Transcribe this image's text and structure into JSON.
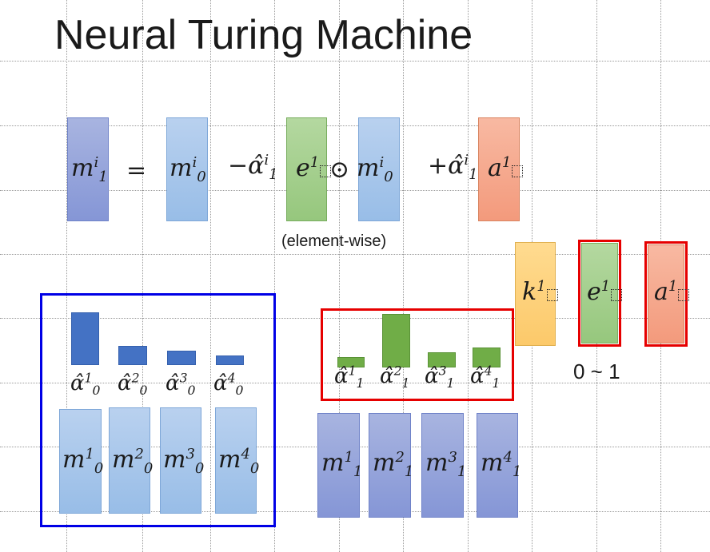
{
  "title": "Neural Turing Machine",
  "equation": {
    "lhs": {
      "base": "m",
      "sub": "1",
      "sup": "i"
    },
    "equals": "=",
    "term1": {
      "base": "m",
      "sub": "0",
      "sup": "i"
    },
    "minus": "−",
    "alpha1": {
      "base": "α̂",
      "sub": "1",
      "sup": "i"
    },
    "erase": {
      "base": "e",
      "sup": "1"
    },
    "odot": "⊙",
    "term2": {
      "base": "m",
      "sub": "0",
      "sup": "i"
    },
    "plus": "+",
    "alpha2": {
      "base": "α̂",
      "sub": "1",
      "sup": "i"
    },
    "add": {
      "base": "a",
      "sup": "1"
    },
    "note": "(element-wise)"
  },
  "controller_vectors": {
    "key": {
      "base": "k",
      "sup": "1"
    },
    "erase": {
      "base": "e",
      "sup": "1"
    },
    "add": {
      "base": "a",
      "sup": "1"
    },
    "range_note": "0 ~ 1"
  },
  "attention_prev": {
    "labels": [
      {
        "base": "α̂",
        "sub": "0",
        "sup": "1"
      },
      {
        "base": "α̂",
        "sub": "0",
        "sup": "2"
      },
      {
        "base": "α̂",
        "sub": "0",
        "sup": "3"
      },
      {
        "base": "α̂",
        "sub": "0",
        "sup": "4"
      }
    ],
    "values": [
      1.0,
      0.36,
      0.27,
      0.18
    ]
  },
  "memory_prev": [
    {
      "base": "m",
      "sub": "0",
      "sup": "1"
    },
    {
      "base": "m",
      "sub": "0",
      "sup": "2"
    },
    {
      "base": "m",
      "sub": "0",
      "sup": "3"
    },
    {
      "base": "m",
      "sub": "0",
      "sup": "4"
    }
  ],
  "attention_new": {
    "labels": [
      {
        "base": "α̂",
        "sub": "1",
        "sup": "1"
      },
      {
        "base": "α̂",
        "sub": "1",
        "sup": "2"
      },
      {
        "base": "α̂",
        "sub": "1",
        "sup": "3"
      },
      {
        "base": "α̂",
        "sub": "1",
        "sup": "4"
      }
    ],
    "values": [
      0.2,
      1.0,
      0.29,
      0.37
    ]
  },
  "memory_new": [
    {
      "base": "m",
      "sub": "1",
      "sup": "1"
    },
    {
      "base": "m",
      "sub": "1",
      "sup": "2"
    },
    {
      "base": "m",
      "sub": "1",
      "sup": "3"
    },
    {
      "base": "m",
      "sub": "1",
      "sup": "4"
    }
  ],
  "colors": {
    "highlight_blue": "#0000e6",
    "highlight_red": "#e60000"
  }
}
